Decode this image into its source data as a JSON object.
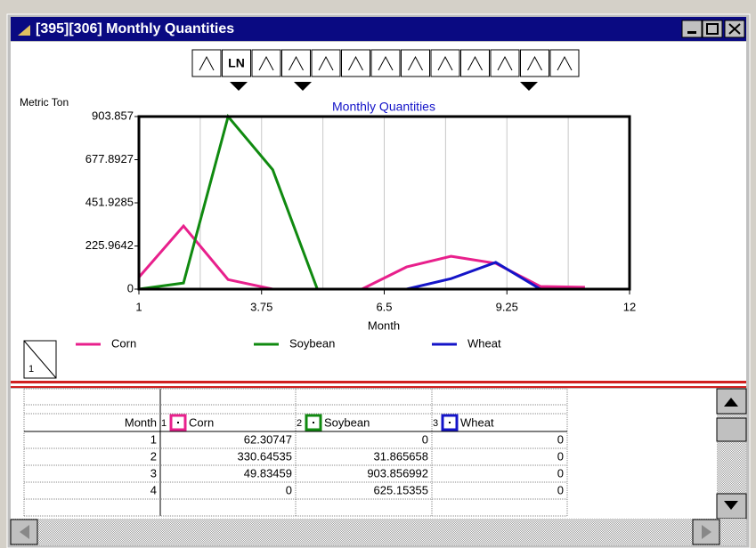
{
  "window": {
    "title": "[395][306]  Monthly Quantities"
  },
  "toolbar": {
    "ln_label": "LN"
  },
  "chart_data": {
    "type": "line",
    "title": "Monthly Quantities",
    "y_label": "Metric Ton",
    "x_label": "Month",
    "x": [
      1,
      2,
      3,
      4,
      5,
      6,
      7,
      8,
      9,
      10,
      11,
      12
    ],
    "xlim": [
      1,
      12
    ],
    "xticks": [
      1,
      3.75,
      6.5,
      9.25,
      12
    ],
    "ylim": [
      0,
      903.857
    ],
    "yticks": [
      0,
      225.9642,
      451.9285,
      677.8927,
      903.857
    ],
    "grid": true,
    "series": [
      {
        "name": "Corn",
        "color": "#e8208c",
        "values": [
          62.30747,
          330.64535,
          49.83459,
          0,
          0,
          0,
          116,
          172,
          135,
          14,
          10,
          null
        ]
      },
      {
        "name": "Soybean",
        "color": "#108a10",
        "values": [
          0,
          31.865658,
          903.856992,
          625.15355,
          0,
          null,
          null,
          null,
          null,
          null,
          null,
          null
        ]
      },
      {
        "name": "Wheat",
        "color": "#1414c8",
        "values": [
          0,
          0,
          0,
          0,
          0,
          0,
          0,
          55,
          140,
          0,
          null,
          null
        ]
      }
    ]
  },
  "table": {
    "col_numbers": [
      "1",
      "2",
      "3"
    ],
    "header": [
      "Month",
      "Corn",
      "Soybean",
      "Wheat"
    ],
    "rows": [
      [
        1,
        62.30747,
        0,
        0
      ],
      [
        2,
        330.64535,
        31.865658,
        0
      ],
      [
        3,
        49.83459,
        903.856992,
        0
      ],
      [
        4,
        0,
        625.15355,
        0
      ]
    ]
  },
  "page_marker": "1"
}
